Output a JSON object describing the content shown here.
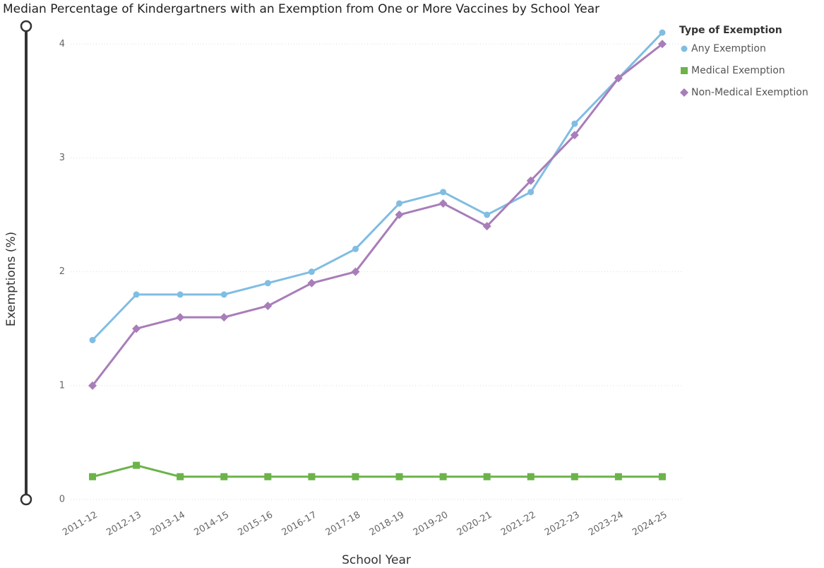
{
  "chart_data": {
    "type": "line",
    "title": "Median Percentage of Kindergartners with an Exemption from One or More Vaccines by School Year",
    "x_label": "School Year",
    "y_label": "Exemptions (%)",
    "legend_title": "Type of Exemption",
    "legend": "right",
    "grid": true,
    "categories": [
      "2011-12",
      "2012-13",
      "2013-14",
      "2014-15",
      "2015-16",
      "2016-17",
      "2017-18",
      "2018-19",
      "2019-20",
      "2020-21",
      "2021-22",
      "2022-23",
      "2023-24",
      "2024-25"
    ],
    "series": [
      {
        "name": "Any Exemption",
        "color": "#80bde3",
        "marker": "circle",
        "values": [
          1.4,
          1.8,
          1.8,
          1.8,
          1.9,
          2.0,
          2.2,
          2.6,
          2.7,
          2.5,
          2.7,
          3.3,
          3.7,
          4.1
        ]
      },
      {
        "name": "Medical Exemption",
        "color": "#6cb34a",
        "marker": "square",
        "values": [
          0.2,
          0.3,
          0.2,
          0.2,
          0.2,
          0.2,
          0.2,
          0.2,
          0.2,
          0.2,
          0.2,
          0.2,
          0.2,
          0.2
        ]
      },
      {
        "name": "Non-Medical Exemption",
        "color": "#a87db9",
        "marker": "diamond",
        "values": [
          1.0,
          1.5,
          1.6,
          1.6,
          1.7,
          1.9,
          2.0,
          2.5,
          2.6,
          2.4,
          2.8,
          3.2,
          3.7,
          4.0
        ]
      }
    ],
    "ylim": [
      0,
      4.25
    ],
    "yticks": [
      0,
      1,
      2,
      3,
      4
    ]
  }
}
